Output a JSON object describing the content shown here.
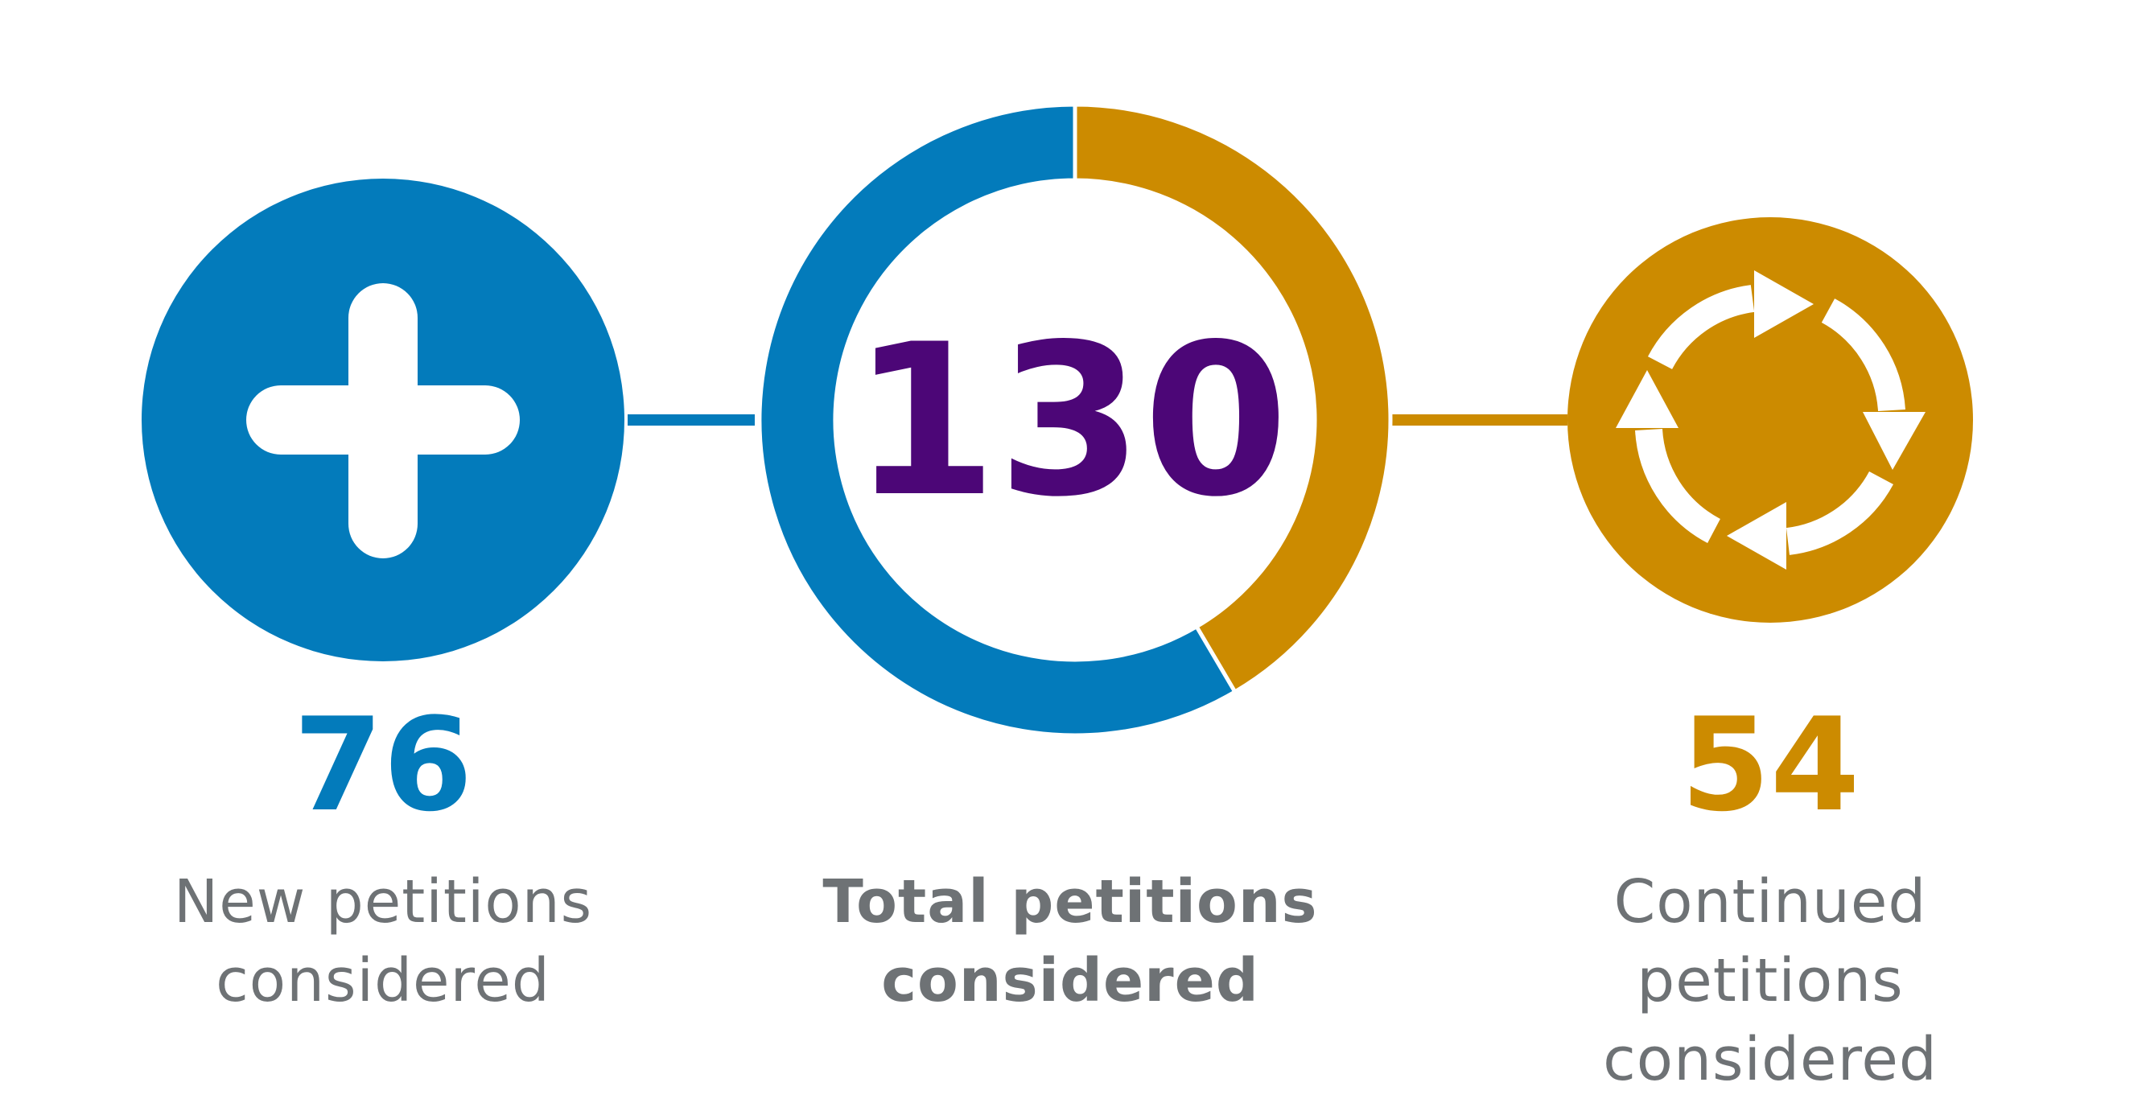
{
  "colors": {
    "new": "#037bbb",
    "continued": "#cc8b00",
    "total": "#4c0677",
    "label": "#6e7275",
    "background": "#ffffff"
  },
  "icons": {
    "new": "plus-icon",
    "continued": "refresh-cycle-icon"
  },
  "chart_data": {
    "type": "pie",
    "variant": "donut",
    "title": "",
    "total": {
      "value": "130",
      "label_line1": "Total petitions",
      "label_line2": "considered"
    },
    "slices": [
      {
        "key": "new",
        "value": 76,
        "value_text": "76",
        "label_line1": "New petitions",
        "label_line2": "considered",
        "color": "#037bbb"
      },
      {
        "key": "continued",
        "value": 54,
        "value_text": "54",
        "label_line1": "Continued petitions",
        "label_line2": "considered",
        "color": "#cc8b00"
      }
    ]
  }
}
